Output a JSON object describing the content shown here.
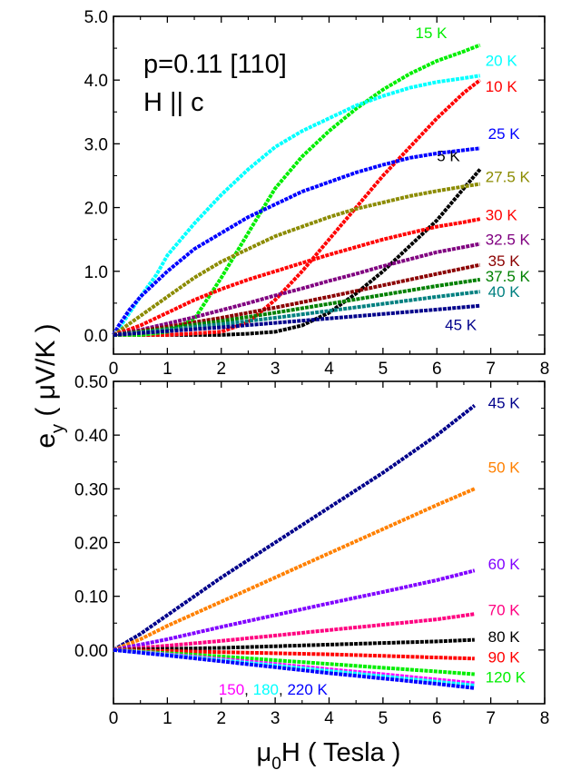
{
  "chart_data": [
    {
      "type": "scatter",
      "panel": "top",
      "annotation_line1": "p=0.11 [110]",
      "annotation_line2": "H || c",
      "xlim": [
        0,
        8
      ],
      "ylim": [
        -0.3,
        5.0
      ],
      "xticks": [
        "0",
        "1",
        "2",
        "3",
        "4",
        "5",
        "6",
        "7",
        "8"
      ],
      "yticks": [
        {
          "value": 0,
          "label": "0.0"
        },
        {
          "value": 1,
          "label": "1.0"
        },
        {
          "value": 2,
          "label": "2.0"
        },
        {
          "value": 3,
          "label": "3.0"
        },
        {
          "value": 4,
          "label": "4.0"
        },
        {
          "value": 5,
          "label": "5.0"
        }
      ],
      "series": [
        {
          "name": "5 K",
          "color": "#000000",
          "x": [
            0,
            1,
            2,
            2.5,
            3,
            3.5,
            4,
            4.5,
            5,
            5.5,
            6,
            6.5,
            6.8
          ],
          "y": [
            0,
            0,
            0,
            0.02,
            0.05,
            0.15,
            0.35,
            0.65,
            1.0,
            1.4,
            1.8,
            2.3,
            2.6
          ],
          "label_x": 6.0,
          "label_y": 2.73
        },
        {
          "name": "10 K",
          "color": "#ff0000",
          "x": [
            0,
            1,
            2,
            2.5,
            3,
            3.5,
            4,
            4.5,
            5,
            5.5,
            6,
            6.5,
            6.8
          ],
          "y": [
            0,
            0,
            0.05,
            0.2,
            0.55,
            1.0,
            1.5,
            2.0,
            2.5,
            2.95,
            3.4,
            3.8,
            4.0
          ],
          "label_x": 6.9,
          "label_y": 3.82
        },
        {
          "name": "15 K",
          "color": "#00ee00",
          "x": [
            0,
            0.5,
            1,
            1.5,
            2,
            2.5,
            3,
            3.5,
            4,
            4.5,
            5,
            5.5,
            6,
            6.5,
            6.8
          ],
          "y": [
            0,
            0,
            0.05,
            0.25,
            0.9,
            1.6,
            2.3,
            2.8,
            3.2,
            3.55,
            3.85,
            4.1,
            4.3,
            4.45,
            4.55
          ],
          "label_x": 5.6,
          "label_y": 4.66
        },
        {
          "name": "20 K",
          "color": "#00ffff",
          "x": [
            0,
            0.1,
            0.3,
            0.5,
            0.8,
            1,
            1.5,
            2,
            2.5,
            3,
            3.5,
            4,
            4.5,
            5,
            5.5,
            6,
            6.5,
            6.8
          ],
          "y": [
            0,
            0.1,
            0.35,
            0.6,
            0.95,
            1.25,
            1.75,
            2.2,
            2.6,
            2.95,
            3.2,
            3.4,
            3.6,
            3.75,
            3.88,
            3.97,
            4.03,
            4.07
          ],
          "label_x": 6.9,
          "label_y": 4.22
        },
        {
          "name": "25 K",
          "color": "#0000ff",
          "x": [
            0,
            0.1,
            0.3,
            0.5,
            1,
            1.5,
            2,
            2.5,
            3,
            3.5,
            4,
            4.5,
            5,
            5.5,
            6,
            6.5,
            6.8
          ],
          "y": [
            0,
            0.15,
            0.4,
            0.6,
            1.0,
            1.35,
            1.6,
            1.85,
            2.05,
            2.25,
            2.4,
            2.55,
            2.67,
            2.78,
            2.85,
            2.9,
            2.93
          ],
          "label_x": 6.95,
          "label_y": 3.08
        },
        {
          "name": "27.5 K",
          "color": "#8b8b00",
          "x": [
            0,
            0.5,
            1,
            1.5,
            2,
            2.5,
            3,
            3.5,
            4,
            4.5,
            5,
            5.5,
            6,
            6.5,
            6.8
          ],
          "y": [
            0,
            0.3,
            0.6,
            0.9,
            1.15,
            1.35,
            1.55,
            1.7,
            1.85,
            1.98,
            2.08,
            2.18,
            2.26,
            2.33,
            2.37
          ],
          "label_x": 6.9,
          "label_y": 2.4
        },
        {
          "name": "30 K",
          "color": "#ff0000",
          "x": [
            0,
            0.5,
            1,
            1.5,
            2,
            2.5,
            3,
            3.5,
            4,
            4.5,
            5,
            5.5,
            6,
            6.5,
            6.8
          ],
          "y": [
            0,
            0.15,
            0.35,
            0.55,
            0.72,
            0.87,
            1.0,
            1.13,
            1.26,
            1.38,
            1.5,
            1.6,
            1.7,
            1.77,
            1.82
          ],
          "label_x": 6.9,
          "label_y": 1.8
        },
        {
          "name": "32.5 K",
          "color": "#800080",
          "x": [
            0,
            0.5,
            1,
            1.5,
            2,
            2.5,
            3,
            3.5,
            4,
            4.5,
            5,
            5.5,
            6,
            6.5,
            6.8
          ],
          "y": [
            0,
            0.08,
            0.18,
            0.28,
            0.39,
            0.5,
            0.62,
            0.73,
            0.85,
            0.96,
            1.08,
            1.19,
            1.3,
            1.38,
            1.43
          ],
          "label_x": 6.9,
          "label_y": 1.42
        },
        {
          "name": "35 K",
          "color": "#8b0000",
          "x": [
            0,
            1,
            2,
            3,
            4,
            5,
            6,
            6.8
          ],
          "y": [
            0,
            0.13,
            0.27,
            0.43,
            0.6,
            0.78,
            0.96,
            1.1
          ],
          "label_x": 6.95,
          "label_y": 1.08
        },
        {
          "name": "37.5 K",
          "color": "#008000",
          "x": [
            0,
            1,
            2,
            3,
            4,
            5,
            6,
            6.8
          ],
          "y": [
            0,
            0.1,
            0.22,
            0.35,
            0.49,
            0.63,
            0.77,
            0.87
          ],
          "label_x": 6.9,
          "label_y": 0.84
        },
        {
          "name": "40 K",
          "color": "#008080",
          "x": [
            0,
            1,
            2,
            3,
            4,
            5,
            6,
            6.8
          ],
          "y": [
            0,
            0.08,
            0.17,
            0.27,
            0.38,
            0.49,
            0.6,
            0.68
          ],
          "label_x": 6.95,
          "label_y": 0.6
        },
        {
          "name": "45 K",
          "color": "#00008b",
          "x": [
            0,
            1,
            2,
            3,
            4,
            5,
            6,
            6.8
          ],
          "y": [
            0,
            0.06,
            0.12,
            0.19,
            0.26,
            0.33,
            0.4,
            0.46
          ],
          "label_x": 6.15,
          "label_y": 0.08
        }
      ]
    },
    {
      "type": "scatter",
      "panel": "bottom",
      "xlabel_pre": "μ",
      "xlabel_sub": "0",
      "xlabel_post": "H ( Tesla )",
      "xlim": [
        0,
        8
      ],
      "ylim": [
        -0.1,
        0.5
      ],
      "xticks": [
        "0",
        "1",
        "2",
        "3",
        "4",
        "5",
        "6",
        "7",
        "8"
      ],
      "yticks": [
        {
          "value": 0,
          "label": "0.00"
        },
        {
          "value": 0.1,
          "label": "0.10"
        },
        {
          "value": 0.2,
          "label": "0.20"
        },
        {
          "value": 0.3,
          "label": "0.30"
        },
        {
          "value": 0.4,
          "label": "0.40"
        },
        {
          "value": 0.5,
          "label": "0.50"
        }
      ],
      "series": [
        {
          "name": "45 K",
          "color": "#00008b",
          "x": [
            0,
            0.5,
            1,
            2,
            3,
            4,
            5,
            6,
            6.7
          ],
          "y": [
            0,
            0.03,
            0.065,
            0.135,
            0.2,
            0.265,
            0.33,
            0.4,
            0.455
          ],
          "label_x": 6.95,
          "label_y": 0.45
        },
        {
          "name": "50 K",
          "color": "#ff8000",
          "x": [
            0,
            0.5,
            1,
            2,
            3,
            4,
            5,
            6,
            6.7
          ],
          "y": [
            0,
            0.02,
            0.045,
            0.09,
            0.135,
            0.18,
            0.225,
            0.27,
            0.3
          ],
          "label_x": 6.95,
          "label_y": 0.33
        },
        {
          "name": "60 K",
          "color": "#8000ff",
          "x": [
            0,
            1,
            2,
            3,
            4,
            5,
            6,
            6.7
          ],
          "y": [
            0,
            0.02,
            0.043,
            0.065,
            0.087,
            0.108,
            0.13,
            0.148
          ],
          "label_x": 6.95,
          "label_y": 0.15
        },
        {
          "name": "70 K",
          "color": "#ff0080",
          "x": [
            0,
            1,
            2,
            3,
            4,
            5,
            6,
            6.7
          ],
          "y": [
            0,
            0.008,
            0.017,
            0.027,
            0.037,
            0.047,
            0.057,
            0.067
          ],
          "label_x": 6.95,
          "label_y": 0.065
        },
        {
          "name": "80 K",
          "color": "#000000",
          "x": [
            0,
            1,
            2,
            3,
            4,
            5,
            6,
            6.7
          ],
          "y": [
            0,
            0.002,
            0.004,
            0.007,
            0.01,
            0.013,
            0.016,
            0.019
          ],
          "label_x": 6.95,
          "label_y": 0.015
        },
        {
          "name": "90 K",
          "color": "#ff0000",
          "x": [
            0,
            1,
            2,
            3,
            4,
            5,
            6,
            6.7
          ],
          "y": [
            0,
            -0.002,
            -0.004,
            -0.006,
            -0.008,
            -0.011,
            -0.014,
            -0.016
          ],
          "label_x": 6.95,
          "label_y": -0.023
        },
        {
          "name": "120 K",
          "color": "#00ee00",
          "x": [
            0,
            1,
            2,
            3,
            4,
            5,
            6,
            6.7
          ],
          "y": [
            0,
            -0.006,
            -0.012,
            -0.019,
            -0.026,
            -0.033,
            -0.04,
            -0.045
          ],
          "label_x": 6.9,
          "label_y": -0.06
        },
        {
          "name": "150",
          "color": "#ff00ff",
          "x": [
            0,
            1,
            2,
            3,
            4,
            5,
            6,
            6.7
          ],
          "y": [
            0,
            -0.008,
            -0.017,
            -0.026,
            -0.036,
            -0.045,
            -0.055,
            -0.062
          ]
        },
        {
          "name": "180",
          "color": "#00ffff",
          "x": [
            0,
            1,
            2,
            3,
            4,
            5,
            6,
            6.7
          ],
          "y": [
            0,
            -0.009,
            -0.019,
            -0.029,
            -0.039,
            -0.049,
            -0.059,
            -0.066
          ]
        },
        {
          "name": "220 K",
          "color": "#0000ff",
          "x": [
            0,
            1,
            2,
            3,
            4,
            5,
            6,
            6.7
          ],
          "y": [
            0,
            -0.01,
            -0.021,
            -0.032,
            -0.043,
            -0.053,
            -0.063,
            -0.071
          ]
        }
      ],
      "inline_label": {
        "x": 1.95,
        "y": -0.083,
        "parts": [
          {
            "text": "150",
            "color": "#ff00ff"
          },
          {
            "text": ", ",
            "color": "#000000"
          },
          {
            "text": "180",
            "color": "#00ffff"
          },
          {
            "text": ", ",
            "color": "#000000"
          },
          {
            "text": "220 K",
            "color": "#0000ff"
          }
        ]
      }
    }
  ],
  "shared_ylabel_main": "e",
  "shared_ylabel_sub": "y",
  "shared_ylabel_rest": "( μV/K )"
}
